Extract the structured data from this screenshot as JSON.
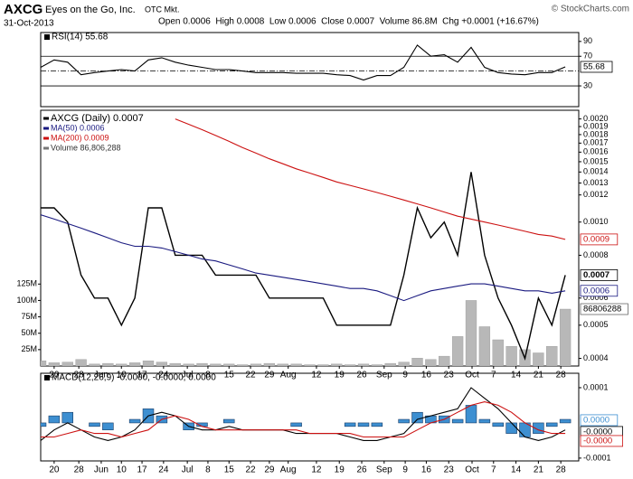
{
  "header": {
    "symbol": "AXCG",
    "company": "Eyes on the Go, Inc.",
    "exchange": "OTC Mkt.",
    "date": "31-Oct-2013",
    "quote": "Open 0.0006  High 0.0008  Low 0.0006  Close 0.0007  Volume 86.8M  Chg +0.0001 (+16.67%)",
    "credit": "© StockCharts.com"
  },
  "chart_data": [
    {
      "type": "line",
      "title": "RSI(14) 55.68",
      "x": [
        0,
        3,
        6,
        9,
        12,
        15,
        18,
        21,
        24,
        27,
        30,
        33,
        36,
        39,
        42,
        45,
        48,
        51,
        54,
        57,
        60,
        63,
        66,
        69,
        72,
        75,
        78,
        81,
        84,
        87,
        90,
        93,
        96,
        99,
        102,
        105,
        108,
        111,
        114,
        117
      ],
      "xlim": [
        0,
        120
      ],
      "ylim": [
        2,
        102
      ],
      "yticks": [
        30,
        70,
        90
      ],
      "levels": [
        30,
        50,
        70
      ],
      "series": [
        {
          "name": "RSI(14)",
          "color": "#000000",
          "tag": "55.68",
          "values": [
            55,
            65,
            62,
            45,
            48,
            50,
            52,
            50,
            65,
            68,
            62,
            58,
            55,
            52,
            52,
            50,
            48,
            48,
            48,
            47,
            47,
            47,
            45,
            44,
            38,
            44,
            44,
            55,
            85,
            70,
            72,
            62,
            82,
            55,
            48,
            46,
            45,
            48,
            48,
            55.68
          ]
        }
      ]
    },
    {
      "type": "line",
      "log_scale": true,
      "x": [
        0,
        3,
        6,
        9,
        12,
        15,
        18,
        21,
        24,
        27,
        30,
        33,
        36,
        39,
        42,
        45,
        48,
        51,
        54,
        57,
        60,
        63,
        66,
        69,
        72,
        75,
        78,
        81,
        84,
        87,
        90,
        93,
        96,
        99,
        102,
        105,
        108,
        111,
        114,
        117
      ],
      "xlim": [
        0,
        120
      ],
      "ylim": [
        0.00038,
        0.00212
      ],
      "yticks": [
        {
          "value": 0.0004,
          "label": "0.0004"
        },
        {
          "value": 0.0005,
          "label": "0.0005"
        },
        {
          "value": 0.0006,
          "label": "0.0006"
        },
        {
          "value": 0.0008,
          "label": "0.0008"
        },
        {
          "value": 0.001,
          "label": "0.0010"
        },
        {
          "value": 0.0012,
          "label": "0.0012"
        },
        {
          "value": 0.0013,
          "label": "0.0013"
        },
        {
          "value": 0.0014,
          "label": "0.0014"
        },
        {
          "value": 0.0015,
          "label": "0.0015"
        },
        {
          "value": 0.0016,
          "label": "0.0016"
        },
        {
          "value": 0.0017,
          "label": "0.0017"
        },
        {
          "value": 0.0018,
          "label": "0.0018"
        },
        {
          "value": 0.0019,
          "label": "0.0019"
        },
        {
          "value": 0.002,
          "label": "0.0020"
        }
      ],
      "y2lim": [
        0,
        390
      ],
      "y2ticks": [
        {
          "value": 25,
          "label": "25M"
        },
        {
          "value": 50,
          "label": "50M"
        },
        {
          "value": 75,
          "label": "75M"
        },
        {
          "value": 100,
          "label": "100M"
        },
        {
          "value": 125,
          "label": "125M"
        }
      ],
      "xticks": [
        {
          "value": 3,
          "label": "20"
        },
        {
          "value": 8.5,
          "label": "28"
        },
        {
          "value": 13.5,
          "label": "Jun"
        },
        {
          "value": 18,
          "label": "10"
        },
        {
          "value": 22.6,
          "label": "17"
        },
        {
          "value": 27.4,
          "label": "24"
        },
        {
          "value": 32.7,
          "label": "Jul"
        },
        {
          "value": 37.3,
          "label": "8"
        },
        {
          "value": 42,
          "label": "15"
        },
        {
          "value": 46.8,
          "label": "22"
        },
        {
          "value": 51,
          "label": "29"
        },
        {
          "value": 55.2,
          "label": "Aug"
        },
        {
          "value": 61.5,
          "label": "12"
        },
        {
          "value": 66.6,
          "label": "19"
        },
        {
          "value": 71.6,
          "label": "26"
        },
        {
          "value": 76.6,
          "label": "Sep"
        },
        {
          "value": 81.3,
          "label": "9"
        },
        {
          "value": 86,
          "label": "16"
        },
        {
          "value": 91,
          "label": "23"
        },
        {
          "value": 96.2,
          "label": "Oct"
        },
        {
          "value": 101,
          "label": "7"
        },
        {
          "value": 106,
          "label": "14"
        },
        {
          "value": 111,
          "label": "21"
        },
        {
          "value": 116,
          "label": "28"
        }
      ],
      "series": [
        {
          "name": "AXCG (Daily) 0.0007",
          "color": "#000000",
          "tag": "0.0007",
          "values": [
            0.0011,
            0.0011,
            0.001,
            0.0007,
            0.0006,
            0.0006,
            0.0005,
            0.0006,
            0.0011,
            0.0011,
            0.0008,
            0.0008,
            0.0008,
            0.0007,
            0.0007,
            0.0007,
            0.0007,
            0.0006,
            0.0006,
            0.0006,
            0.0006,
            0.0006,
            0.0005,
            0.0005,
            0.0005,
            0.0005,
            0.0005,
            0.0007,
            0.0011,
            0.0009,
            0.001,
            0.0008,
            0.0014,
            0.0008,
            0.0006,
            0.0005,
            0.0004,
            0.0006,
            0.0005,
            0.0007
          ]
        },
        {
          "name": "MA(50) 0.0006",
          "color": "#1a1a80",
          "tag": "0.0006",
          "values": [
            0.00105,
            0.00102,
            0.00099,
            0.00096,
            0.00093,
            0.0009,
            0.00087,
            0.00085,
            0.00085,
            0.00084,
            0.00082,
            0.0008,
            0.00078,
            0.00077,
            0.00075,
            0.00073,
            0.00071,
            0.0007,
            0.00069,
            0.00068,
            0.00067,
            0.00066,
            0.00065,
            0.00064,
            0.00064,
            0.00063,
            0.00061,
            0.00059,
            0.00061,
            0.00063,
            0.00064,
            0.00065,
            0.00066,
            0.00066,
            0.00065,
            0.00064,
            0.00063,
            0.00063,
            0.00062,
            0.00063
          ]
        },
        {
          "name": "MA(200) 0.0009",
          "color": "#cc1111",
          "tag": "0.0009",
          "values": [
            null,
            null,
            null,
            null,
            null,
            null,
            null,
            null,
            null,
            null,
            0.002,
            0.00193,
            0.00186,
            0.00179,
            0.00172,
            0.00165,
            0.00159,
            0.00153,
            0.00148,
            0.00143,
            0.00139,
            0.00135,
            0.00131,
            0.00128,
            0.00125,
            0.00122,
            0.00119,
            0.00116,
            0.00113,
            0.0011,
            0.00107,
            0.00104,
            0.00102,
            0.001,
            0.00098,
            0.00096,
            0.00094,
            0.00092,
            0.00091,
            0.00089
          ]
        },
        {
          "name": "Volume 86,806,288",
          "color": "#b8b8b8",
          "axis": "y2",
          "tag": "86806288",
          "values": [
            8,
            5,
            6,
            10,
            3,
            4,
            3,
            5,
            8,
            6,
            4,
            3,
            4,
            3,
            3,
            2,
            3,
            4,
            3,
            3,
            2,
            2,
            3,
            2,
            3,
            2,
            4,
            6,
            12,
            10,
            15,
            45,
            100,
            60,
            40,
            30,
            25,
            20,
            30,
            86.8
          ]
        }
      ]
    },
    {
      "type": "macd",
      "title": "MACD(12,26,9) -0.0000, -0.0000, 0.0000",
      "x": [
        0,
        3,
        6,
        9,
        12,
        15,
        18,
        21,
        24,
        27,
        30,
        33,
        36,
        39,
        42,
        45,
        48,
        51,
        54,
        57,
        60,
        63,
        66,
        69,
        72,
        75,
        78,
        81,
        84,
        87,
        90,
        93,
        96,
        99,
        102,
        105,
        108,
        111,
        114,
        117
      ],
      "xlim": [
        0,
        120
      ],
      "ylim": [
        -0.000108,
        0.000141
      ],
      "yticks": [
        {
          "value": -0.0001,
          "label": "-0.0001"
        },
        {
          "value": 0.0001,
          "label": "0.0001"
        }
      ],
      "xticks": [
        {
          "value": 3,
          "label": "20"
        },
        {
          "value": 8.5,
          "label": "28"
        },
        {
          "value": 13.5,
          "label": "Jun"
        },
        {
          "value": 18,
          "label": "10"
        },
        {
          "value": 22.6,
          "label": "17"
        },
        {
          "value": 27.4,
          "label": "24"
        },
        {
          "value": 32.7,
          "label": "Jul"
        },
        {
          "value": 37.3,
          "label": "8"
        },
        {
          "value": 42,
          "label": "15"
        },
        {
          "value": 46.8,
          "label": "22"
        },
        {
          "value": 51,
          "label": "29"
        },
        {
          "value": 55.2,
          "label": "Aug"
        },
        {
          "value": 61.5,
          "label": "12"
        },
        {
          "value": 66.6,
          "label": "19"
        },
        {
          "value": 71.6,
          "label": "26"
        },
        {
          "value": 76.6,
          "label": "Sep"
        },
        {
          "value": 81.3,
          "label": "9"
        },
        {
          "value": 86,
          "label": "16"
        },
        {
          "value": 91,
          "label": "23"
        },
        {
          "value": 96.2,
          "label": "Oct"
        },
        {
          "value": 101,
          "label": "7"
        },
        {
          "value": 106,
          "label": "14"
        },
        {
          "value": 111,
          "label": "21"
        },
        {
          "value": 116,
          "label": "28"
        }
      ],
      "series": [
        {
          "name": "MACD",
          "color": "#000000",
          "tag": "-0.0000",
          "values": [
            -5e-05,
            -2e-05,
            0,
            -2e-05,
            -4e-05,
            -5e-05,
            -4e-05,
            -2e-05,
            2e-05,
            3e-05,
            2e-05,
            -1e-05,
            -2e-05,
            -2e-05,
            -1e-05,
            -2e-05,
            -2e-05,
            -2e-05,
            -2e-05,
            -3e-05,
            -3e-05,
            -3e-05,
            -3e-05,
            -4e-05,
            -5e-05,
            -5e-05,
            -4e-05,
            -3e-05,
            1e-05,
            2e-05,
            3e-05,
            4e-05,
            0.0001,
            7e-05,
            4e-05,
            0,
            -4e-05,
            -5e-05,
            -4e-05,
            -2e-05
          ]
        },
        {
          "name": "Signal",
          "color": "#cc1111",
          "tag": "-0.0000",
          "values": [
            -4e-05,
            -4e-05,
            -3e-05,
            -2e-05,
            -3e-05,
            -3e-05,
            -4e-05,
            -3e-05,
            -2e-05,
            1e-05,
            2e-05,
            1e-05,
            -1e-05,
            -2e-05,
            -2e-05,
            -2e-05,
            -2e-05,
            -2e-05,
            -2e-05,
            -2e-05,
            -3e-05,
            -3e-05,
            -3e-05,
            -3e-05,
            -4e-05,
            -4e-05,
            -4e-05,
            -4e-05,
            -2e-05,
            0,
            1e-05,
            3e-05,
            5e-05,
            6e-05,
            5e-05,
            3e-05,
            0,
            -2e-05,
            -3e-05,
            -3e-05
          ]
        },
        {
          "name": "Histogram",
          "color": "#3d8fd1",
          "bars": true,
          "tag": "0.0000",
          "values": [
            -1e-05,
            2e-05,
            3e-05,
            0,
            -1e-05,
            -2e-05,
            0,
            1e-05,
            4e-05,
            2e-05,
            0,
            -2e-05,
            -1e-05,
            0,
            1e-05,
            0,
            0,
            0,
            0,
            -1e-05,
            0,
            0,
            0,
            -1e-05,
            -1e-05,
            -1e-05,
            0,
            1e-05,
            3e-05,
            2e-05,
            2e-05,
            1e-05,
            5e-05,
            1e-05,
            -1e-05,
            -3e-05,
            -4e-05,
            -3e-05,
            -1e-05,
            1e-05
          ]
        }
      ]
    }
  ]
}
